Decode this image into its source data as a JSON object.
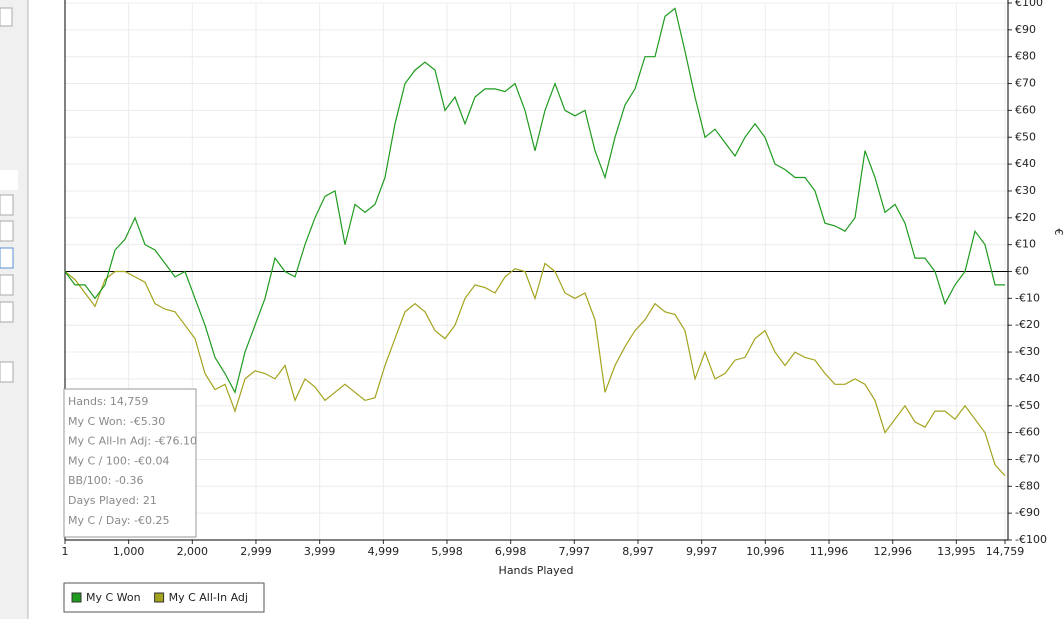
{
  "chart_data": {
    "type": "line",
    "xlabel": "Hands Played",
    "ylabel": "€",
    "x": [
      1,
      158,
      315,
      472,
      629,
      786,
      943,
      1100,
      1257,
      1414,
      1571,
      1728,
      1885,
      2042,
      2199,
      2356,
      2513,
      2670,
      2827,
      2984,
      3141,
      3298,
      3455,
      3612,
      3769,
      3926,
      4083,
      4240,
      4397,
      4554,
      4711,
      4868,
      5025,
      5182,
      5339,
      5496,
      5653,
      5810,
      5967,
      6124,
      6281,
      6438,
      6595,
      6752,
      6909,
      7066,
      7223,
      7380,
      7537,
      7694,
      7851,
      8008,
      8165,
      8322,
      8479,
      8636,
      8793,
      8950,
      9107,
      9264,
      9421,
      9578,
      9735,
      9892,
      10049,
      10206,
      10363,
      10520,
      10677,
      10834,
      10991,
      11148,
      11305,
      11462,
      11619,
      11776,
      11933,
      12090,
      12247,
      12404,
      12561,
      12718,
      12875,
      13032,
      13189,
      13346,
      13503,
      13660,
      13817,
      13974,
      14131,
      14288,
      14445,
      14602,
      14759
    ],
    "series": [
      {
        "name": "My C Won",
        "color": "#1e9b1e",
        "values": [
          0,
          -5,
          -5,
          -10,
          -5,
          8,
          12,
          20,
          10,
          8,
          3,
          -2,
          0,
          -10,
          -20,
          -32,
          -38,
          -45,
          -30,
          -20,
          -10,
          5,
          0,
          -2,
          10,
          20,
          28,
          30,
          10,
          25,
          22,
          25,
          35,
          55,
          70,
          75,
          78,
          75,
          60,
          65,
          55,
          65,
          68,
          68,
          67,
          70,
          60,
          45,
          60,
          70,
          60,
          58,
          60,
          45,
          35,
          50,
          62,
          68,
          80,
          80,
          95,
          98,
          82,
          65,
          50,
          53,
          48,
          43,
          50,
          55,
          50,
          40,
          38,
          35,
          35,
          30,
          18,
          17,
          15,
          20,
          45,
          35,
          22,
          25,
          18,
          5,
          5,
          0,
          -12,
          -5,
          0,
          15,
          10,
          -5,
          -5
        ]
      },
      {
        "name": "My C All-In Adj",
        "color": "#a3a31e",
        "values": [
          0,
          -3,
          -8,
          -13,
          -3,
          0,
          0,
          -2,
          -4,
          -12,
          -14,
          -15,
          -20,
          -25,
          -38,
          -44,
          -42,
          -52,
          -40,
          -37,
          -38,
          -40,
          -35,
          -48,
          -40,
          -43,
          -48,
          -45,
          -42,
          -45,
          -48,
          -47,
          -35,
          -25,
          -15,
          -12,
          -15,
          -22,
          -25,
          -20,
          -10,
          -5,
          -6,
          -8,
          -2,
          1,
          0,
          -10,
          3,
          0,
          -8,
          -10,
          -8,
          -18,
          -45,
          -35,
          -28,
          -22,
          -18,
          -12,
          -15,
          -16,
          -22,
          -40,
          -30,
          -40,
          -38,
          -33,
          -32,
          -25,
          -22,
          -30,
          -35,
          -30,
          -32,
          -33,
          -38,
          -42,
          -42,
          -40,
          -42,
          -48,
          -60,
          -55,
          -50,
          -56,
          -58,
          -52,
          -52,
          -55,
          -50,
          -55,
          -60,
          -72,
          -76
        ]
      }
    ],
    "xlim": [
      1,
      14759
    ],
    "ylim": [
      -100,
      100
    ],
    "xticks": [
      1,
      {
        "value": 1000,
        "label": "1,000"
      },
      {
        "value": 2000,
        "label": "2,000"
      },
      {
        "value": 2999,
        "label": "2,999"
      },
      {
        "value": 3999,
        "label": "3,999"
      },
      {
        "value": 4999,
        "label": "4,999"
      },
      {
        "value": 5998,
        "label": "5,998"
      },
      {
        "value": 6998,
        "label": "6,998"
      },
      {
        "value": 7997,
        "label": "7,997"
      },
      {
        "value": 8997,
        "label": "8,997"
      },
      {
        "value": 9997,
        "label": "9,997"
      },
      {
        "value": 10996,
        "label": "10,996"
      },
      {
        "value": 11996,
        "label": "11,996"
      },
      {
        "value": 12996,
        "label": "12,996"
      },
      {
        "value": 13995,
        "label": "13,995"
      },
      {
        "value": 14759,
        "label": "14,759"
      }
    ],
    "yticks": [
      {
        "value": -100,
        "label": "-€100"
      },
      {
        "value": -90,
        "label": "-€90"
      },
      {
        "value": -80,
        "label": "-€80"
      },
      {
        "value": -70,
        "label": "-€70"
      },
      {
        "value": -60,
        "label": "-€60"
      },
      {
        "value": -50,
        "label": "-€50"
      },
      {
        "value": -40,
        "label": "-€40"
      },
      {
        "value": -30,
        "label": "-€30"
      },
      {
        "value": -20,
        "label": "-€20"
      },
      {
        "value": -10,
        "label": "-€10"
      },
      {
        "value": 0,
        "label": "€0"
      },
      {
        "value": 10,
        "label": "€10"
      },
      {
        "value": 20,
        "label": "€20"
      },
      {
        "value": 30,
        "label": "€30"
      },
      {
        "value": 40,
        "label": "€40"
      },
      {
        "value": 50,
        "label": "€50"
      },
      {
        "value": 60,
        "label": "€60"
      },
      {
        "value": 70,
        "label": "€70"
      },
      {
        "value": 80,
        "label": "€80"
      },
      {
        "value": 90,
        "label": "€90"
      },
      {
        "value": 100,
        "label": "€100"
      }
    ],
    "grid": true,
    "legend": "bottom-left",
    "stats": [
      "Hands: 14,759",
      "My C Won: -€5.30",
      "My C All-In Adj: -€76.10",
      "My C / 100: -€0.04",
      "BB/100: -0.36",
      "Days Played: 21",
      "My C / Day: -€0.25"
    ]
  }
}
